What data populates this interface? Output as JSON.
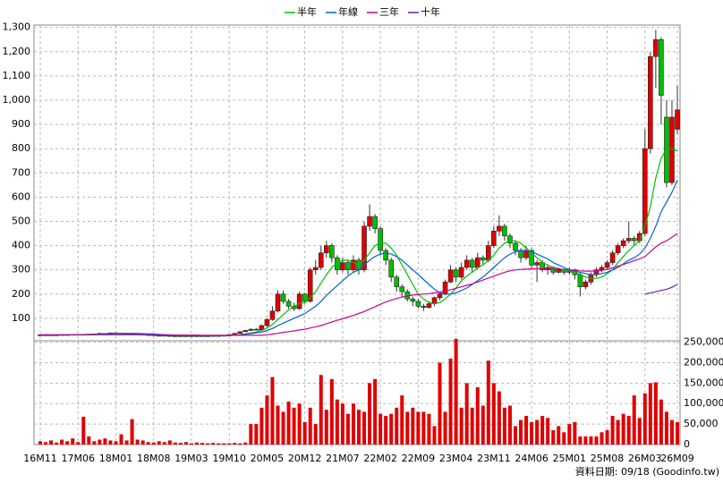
{
  "chart_data": {
    "type": "candlestick",
    "legend": "top",
    "grid": true,
    "categories": [
      "16M11",
      null,
      null,
      null,
      null,
      null,
      null,
      "17M06",
      null,
      null,
      null,
      null,
      null,
      null,
      "18M01",
      null,
      null,
      null,
      null,
      null,
      null,
      "18M08",
      null,
      null,
      null,
      null,
      null,
      null,
      "19M03",
      null,
      null,
      null,
      null,
      null,
      null,
      "19M10",
      null,
      null,
      null,
      null,
      null,
      null,
      "20M05",
      null,
      null,
      null,
      null,
      null,
      null,
      "20M12",
      null,
      null,
      null,
      null,
      null,
      null,
      "21M07",
      null,
      null,
      null,
      null,
      null,
      null,
      "22M02",
      null,
      null,
      null,
      null,
      null,
      null,
      "22M09",
      null,
      null,
      null,
      null,
      null,
      null,
      "23M04",
      null,
      null,
      null,
      null,
      null,
      null,
      "23M11",
      null,
      null,
      null,
      null,
      null,
      null,
      "24M06",
      null,
      null,
      null,
      null,
      null,
      null,
      "25M01",
      null,
      null,
      null,
      null,
      null,
      null,
      "25M08",
      null,
      null,
      null,
      null,
      null,
      null,
      "26M03",
      null,
      null,
      null,
      null,
      null,
      "26M09"
    ],
    "ohlc": [
      [
        31,
        34,
        30,
        32
      ],
      [
        32,
        33,
        30,
        31
      ],
      [
        31,
        33,
        30,
        32
      ],
      [
        32,
        33,
        30,
        31
      ],
      [
        31,
        34,
        30,
        33
      ],
      [
        33,
        34,
        31,
        32
      ],
      [
        32,
        35,
        31,
        34
      ],
      [
        34,
        35,
        32,
        33
      ],
      [
        33,
        36,
        32,
        34
      ],
      [
        34,
        36,
        33,
        35
      ],
      [
        35,
        37,
        34,
        36
      ],
      [
        36,
        40,
        35,
        38
      ],
      [
        38,
        39,
        36,
        37
      ],
      [
        37,
        42,
        36,
        40
      ],
      [
        40,
        41,
        38,
        39
      ],
      [
        39,
        40,
        37,
        38
      ],
      [
        38,
        40,
        37,
        38
      ],
      [
        38,
        39,
        35,
        36
      ],
      [
        36,
        37,
        34,
        35
      ],
      [
        35,
        36,
        32,
        33
      ],
      [
        33,
        34,
        31,
        32
      ],
      [
        32,
        33,
        29,
        30
      ],
      [
        30,
        31,
        29,
        30
      ],
      [
        30,
        31,
        28,
        29
      ],
      [
        29,
        30,
        27,
        28
      ],
      [
        28,
        29,
        27,
        28
      ],
      [
        28,
        29,
        26,
        27
      ],
      [
        27,
        29,
        26,
        28
      ],
      [
        28,
        29,
        26,
        27
      ],
      [
        27,
        29,
        26,
        28
      ],
      [
        28,
        29,
        26,
        27
      ],
      [
        27,
        29,
        26,
        28
      ],
      [
        28,
        30,
        27,
        29
      ],
      [
        29,
        30,
        27,
        28
      ],
      [
        28,
        31,
        27,
        30
      ],
      [
        30,
        34,
        29,
        33
      ],
      [
        33,
        40,
        32,
        38
      ],
      [
        38,
        47,
        37,
        45
      ],
      [
        45,
        53,
        43,
        50
      ],
      [
        50,
        58,
        48,
        55
      ],
      [
        55,
        60,
        50,
        52
      ],
      [
        52,
        75,
        50,
        70
      ],
      [
        70,
        100,
        65,
        95
      ],
      [
        95,
        150,
        90,
        130
      ],
      [
        130,
        215,
        125,
        200
      ],
      [
        200,
        215,
        160,
        170
      ],
      [
        170,
        180,
        140,
        150
      ],
      [
        150,
        165,
        130,
        140
      ],
      [
        140,
        210,
        135,
        200
      ],
      [
        200,
        205,
        160,
        170
      ],
      [
        170,
        310,
        165,
        300
      ],
      [
        300,
        340,
        280,
        310
      ],
      [
        310,
        400,
        300,
        370
      ],
      [
        370,
        420,
        350,
        400
      ],
      [
        400,
        410,
        330,
        350
      ],
      [
        350,
        360,
        280,
        300
      ],
      [
        300,
        350,
        290,
        330
      ],
      [
        330,
        340,
        280,
        300
      ],
      [
        300,
        360,
        290,
        340
      ],
      [
        340,
        350,
        280,
        300
      ],
      [
        300,
        500,
        290,
        480
      ],
      [
        480,
        570,
        460,
        520
      ],
      [
        520,
        530,
        450,
        470
      ],
      [
        470,
        480,
        360,
        380
      ],
      [
        380,
        390,
        320,
        340
      ],
      [
        340,
        350,
        250,
        270
      ],
      [
        270,
        280,
        210,
        230
      ],
      [
        230,
        240,
        190,
        210
      ],
      [
        210,
        220,
        170,
        180
      ],
      [
        180,
        190,
        150,
        170
      ],
      [
        170,
        180,
        140,
        150
      ],
      [
        150,
        160,
        130,
        145
      ],
      [
        145,
        170,
        140,
        160
      ],
      [
        160,
        190,
        150,
        185
      ],
      [
        185,
        210,
        175,
        200
      ],
      [
        200,
        260,
        195,
        250
      ],
      [
        250,
        320,
        245,
        300
      ],
      [
        300,
        310,
        250,
        270
      ],
      [
        270,
        330,
        260,
        310
      ],
      [
        310,
        360,
        300,
        340
      ],
      [
        340,
        350,
        290,
        310
      ],
      [
        310,
        370,
        300,
        350
      ],
      [
        350,
        360,
        320,
        340
      ],
      [
        340,
        420,
        330,
        400
      ],
      [
        400,
        480,
        390,
        460
      ],
      [
        460,
        525,
        440,
        480
      ],
      [
        480,
        490,
        420,
        440
      ],
      [
        440,
        450,
        390,
        410
      ],
      [
        410,
        420,
        360,
        380
      ],
      [
        380,
        390,
        330,
        350
      ],
      [
        350,
        400,
        340,
        380
      ],
      [
        380,
        390,
        300,
        320
      ],
      [
        320,
        340,
        250,
        330
      ],
      [
        330,
        340,
        290,
        300
      ],
      [
        300,
        320,
        280,
        310
      ],
      [
        310,
        315,
        280,
        290
      ],
      [
        290,
        310,
        285,
        300
      ],
      [
        300,
        305,
        280,
        290
      ],
      [
        290,
        310,
        280,
        300
      ],
      [
        300,
        305,
        260,
        280
      ],
      [
        280,
        290,
        190,
        230
      ],
      [
        230,
        260,
        220,
        250
      ],
      [
        250,
        290,
        240,
        280
      ],
      [
        280,
        310,
        270,
        300
      ],
      [
        300,
        320,
        290,
        310
      ],
      [
        310,
        340,
        300,
        330
      ],
      [
        330,
        380,
        320,
        370
      ],
      [
        370,
        410,
        360,
        400
      ],
      [
        400,
        430,
        390,
        420
      ],
      [
        420,
        500,
        410,
        430
      ],
      [
        430,
        440,
        400,
        420
      ],
      [
        420,
        460,
        410,
        450
      ],
      [
        450,
        880,
        440,
        800
      ],
      [
        800,
        1200,
        780,
        1180
      ],
      [
        1180,
        1290,
        1050,
        1250
      ],
      [
        1250,
        1260,
        900,
        1020
      ],
      [
        930,
        1000,
        640,
        660
      ],
      [
        660,
        1000,
        650,
        930
      ],
      [
        880,
        1060,
        860,
        960
      ]
    ],
    "up_color": "#e00000",
    "down_color": "#00c000",
    "series": [
      {
        "name": "半年",
        "color": "#00c000",
        "values": [
          32,
          32,
          32,
          32,
          32,
          32,
          33,
          33,
          33,
          34,
          34,
          35,
          36,
          37,
          37,
          38,
          38,
          38,
          38,
          37,
          36,
          35,
          33,
          32,
          31,
          30,
          29,
          28,
          28,
          28,
          27,
          27,
          28,
          28,
          28,
          29,
          30,
          33,
          36,
          40,
          44,
          50,
          60,
          75,
          95,
          115,
          135,
          150,
          160,
          165,
          185,
          210,
          245,
          280,
          310,
          330,
          340,
          340,
          330,
          320,
          340,
          370,
          400,
          410,
          410,
          390,
          360,
          320,
          280,
          240,
          200,
          180,
          165,
          160,
          165,
          180,
          200,
          225,
          255,
          275,
          290,
          310,
          320,
          340,
          360,
          390,
          410,
          420,
          420,
          410,
          390,
          370,
          350,
          330,
          320,
          310,
          305,
          300,
          295,
          290,
          280,
          270,
          265,
          265,
          270,
          285,
          300,
          330,
          355,
          380,
          400,
          420,
          480,
          560,
          680,
          760,
          800,
          800,
          790
        ]
      },
      {
        "name": "年線",
        "color": "#0060e0",
        "values": [
          32,
          32,
          32,
          32,
          32,
          32,
          32,
          32,
          32,
          32,
          33,
          34,
          35,
          35,
          36,
          37,
          37,
          37,
          37,
          36,
          36,
          35,
          34,
          33,
          32,
          31,
          30,
          29,
          29,
          28,
          28,
          28,
          28,
          28,
          28,
          29,
          30,
          32,
          34,
          37,
          40,
          43,
          50,
          58,
          70,
          80,
          90,
          100,
          110,
          120,
          135,
          150,
          170,
          195,
          215,
          235,
          255,
          275,
          290,
          300,
          320,
          340,
          355,
          365,
          370,
          365,
          355,
          340,
          320,
          300,
          280,
          260,
          240,
          220,
          205,
          200,
          200,
          205,
          215,
          225,
          240,
          255,
          270,
          290,
          310,
          330,
          350,
          365,
          375,
          380,
          380,
          375,
          365,
          355,
          345,
          330,
          320,
          310,
          300,
          295,
          290,
          285,
          280,
          280,
          285,
          290,
          300,
          310,
          325,
          340,
          350,
          365,
          390,
          430,
          480,
          540,
          580,
          620,
          670
        ]
      },
      {
        "name": "三年",
        "color": "#d0008c",
        "values": [
          32,
          32,
          32,
          32,
          32,
          32,
          32,
          32,
          32,
          32,
          32,
          32,
          32,
          32,
          32,
          32,
          32,
          32,
          32,
          32,
          31,
          31,
          31,
          31,
          31,
          31,
          31,
          31,
          31,
          31,
          30,
          30,
          30,
          30,
          30,
          30,
          30,
          30,
          30,
          30,
          30,
          30,
          32,
          35,
          38,
          42,
          45,
          48,
          52,
          55,
          60,
          65,
          70,
          78,
          85,
          92,
          98,
          105,
          112,
          120,
          128,
          138,
          148,
          158,
          168,
          175,
          182,
          188,
          192,
          196,
          198,
          200,
          202,
          205,
          208,
          212,
          218,
          224,
          230,
          236,
          242,
          250,
          258,
          266,
          274,
          282,
          290,
          296,
          300,
          302,
          303,
          304,
          305,
          305,
          305,
          304,
          303,
          302,
          300,
          298,
          296,
          295,
          295,
          296,
          298,
          302,
          308,
          315,
          322,
          330,
          338,
          345,
          355,
          375,
          395,
          410,
          420,
          435,
          450
        ]
      },
      {
        "name": "十年",
        "color": "#6a1fb0",
        "values": [
          null,
          null,
          null,
          null,
          null,
          null,
          null,
          null,
          null,
          null,
          null,
          null,
          null,
          null,
          null,
          null,
          null,
          null,
          null,
          null,
          null,
          null,
          null,
          null,
          null,
          null,
          null,
          null,
          null,
          null,
          null,
          null,
          null,
          null,
          null,
          null,
          null,
          null,
          null,
          null,
          null,
          null,
          null,
          null,
          null,
          null,
          null,
          null,
          null,
          null,
          null,
          null,
          null,
          null,
          null,
          null,
          null,
          null,
          null,
          null,
          null,
          null,
          null,
          null,
          null,
          null,
          null,
          null,
          null,
          null,
          null,
          null,
          null,
          null,
          null,
          null,
          null,
          null,
          null,
          null,
          null,
          null,
          null,
          null,
          null,
          null,
          null,
          null,
          null,
          null,
          null,
          null,
          null,
          null,
          null,
          null,
          null,
          null,
          null,
          null,
          null,
          null,
          null,
          null,
          null,
          null,
          null,
          null,
          null,
          null,
          null,
          null,
          200,
          205,
          210,
          215,
          220,
          228,
          240
        ]
      }
    ],
    "ylim": [
      0,
      1310
    ],
    "yticks": [
      100,
      200,
      300,
      400,
      500,
      600,
      700,
      800,
      900,
      {
        "value": 1000,
        "label": "1,000"
      },
      {
        "value": 1100,
        "label": "1,100"
      },
      {
        "value": 1200,
        "label": "1,200"
      },
      {
        "value": 1300,
        "label": "1,300"
      }
    ],
    "volume": {
      "color": "#e00000",
      "values": [
        8000,
        6000,
        10000,
        5000,
        12000,
        8000,
        15000,
        6000,
        68000,
        20000,
        8000,
        12000,
        15000,
        10000,
        8000,
        25000,
        10000,
        62000,
        12000,
        10000,
        6000,
        5000,
        8000,
        6000,
        10000,
        5000,
        4000,
        6000,
        3000,
        5000,
        4000,
        3000,
        4000,
        3000,
        3000,
        3000,
        4000,
        3000,
        5000,
        50000,
        50000,
        90000,
        120000,
        165000,
        95000,
        80000,
        105000,
        90000,
        100000,
        55000,
        90000,
        50000,
        170000,
        85000,
        160000,
        110000,
        100000,
        75000,
        100000,
        85000,
        80000,
        150000,
        160000,
        75000,
        70000,
        75000,
        90000,
        120000,
        80000,
        90000,
        80000,
        80000,
        75000,
        45000,
        200000,
        80000,
        210000,
        258000,
        90000,
        150000,
        90000,
        140000,
        95000,
        205000,
        150000,
        130000,
        90000,
        95000,
        45000,
        60000,
        70000,
        55000,
        60000,
        70000,
        65000,
        35000,
        45000,
        30000,
        50000,
        55000,
        20000,
        20000,
        20000,
        20000,
        30000,
        35000,
        70000,
        60000,
        75000,
        70000,
        120000,
        65000,
        125000,
        150000,
        152000,
        110000,
        80000,
        60000,
        55000
      ],
      "ylim": [
        0,
        260000
      ],
      "yticks": [
        0,
        {
          "value": 50000,
          "label": "50,000"
        },
        {
          "value": 100000,
          "label": "100,000"
        },
        {
          "value": 150000,
          "label": "150,000"
        },
        {
          "value": 200000,
          "label": "200,000"
        },
        {
          "value": 250000,
          "label": "250,000"
        }
      ]
    },
    "footer": "資料日期: 09/18  (Goodinfo.tw)"
  }
}
